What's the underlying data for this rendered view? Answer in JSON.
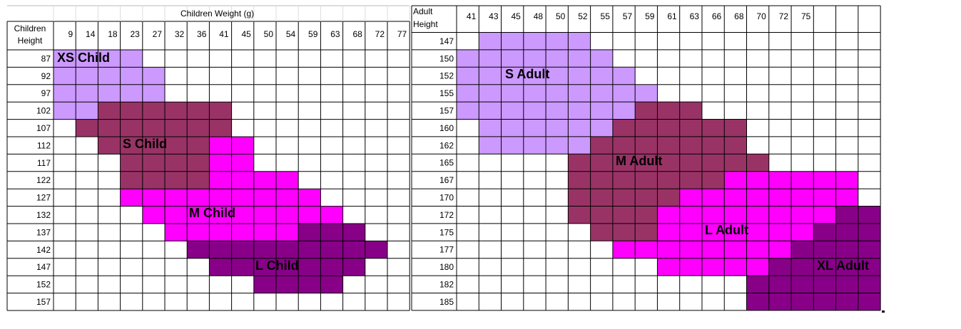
{
  "left_table": {
    "title": "Children Weight (g)",
    "corner": [
      "Children",
      "Height"
    ],
    "columns": [
      9,
      14,
      18,
      23,
      27,
      32,
      36,
      41,
      45,
      50,
      54,
      59,
      63,
      68,
      72,
      77
    ],
    "rows": [
      {
        "label": 87,
        "cells": [
          "#c9f",
          "#c9f",
          "#c9f",
          "#c9f",
          null,
          null,
          null,
          null,
          null,
          null,
          null,
          null,
          null,
          null,
          null,
          null
        ]
      },
      {
        "label": 92,
        "cells": [
          "#c9f",
          "#c9f",
          "#c9f",
          "#c9f",
          "#c9f",
          null,
          null,
          null,
          null,
          null,
          null,
          null,
          null,
          null,
          null,
          null
        ]
      },
      {
        "label": 97,
        "cells": [
          "#c9f",
          "#c9f",
          "#c9f",
          "#c9f",
          "#c9f",
          null,
          null,
          null,
          null,
          null,
          null,
          null,
          null,
          null,
          null,
          null
        ]
      },
      {
        "label": 102,
        "cells": [
          "#c9f",
          "#c9f",
          "#936",
          "#936",
          "#936",
          "#936",
          "#936",
          "#936",
          null,
          null,
          null,
          null,
          null,
          null,
          null,
          null
        ]
      },
      {
        "label": 107,
        "cells": [
          null,
          "#936",
          "#936",
          "#936",
          "#936",
          "#936",
          "#936",
          "#936",
          null,
          null,
          null,
          null,
          null,
          null,
          null,
          null
        ]
      },
      {
        "label": 112,
        "cells": [
          null,
          null,
          "#936",
          "#936",
          "#936",
          "#936",
          "#936",
          "#f0f",
          "#f0f",
          null,
          null,
          null,
          null,
          null,
          null,
          null
        ]
      },
      {
        "label": 117,
        "cells": [
          null,
          null,
          null,
          "#936",
          "#936",
          "#936",
          "#936",
          "#f0f",
          "#f0f",
          null,
          null,
          null,
          null,
          null,
          null,
          null
        ]
      },
      {
        "label": 122,
        "cells": [
          null,
          null,
          null,
          "#936",
          "#936",
          "#936",
          "#936",
          "#f0f",
          "#f0f",
          "#f0f",
          "#f0f",
          null,
          null,
          null,
          null,
          null
        ]
      },
      {
        "label": 127,
        "cells": [
          null,
          null,
          null,
          "#f0f",
          "#f0f",
          "#f0f",
          "#f0f",
          "#f0f",
          "#f0f",
          "#f0f",
          "#f0f",
          "#f0f",
          null,
          null,
          null,
          null
        ]
      },
      {
        "label": 132,
        "cells": [
          null,
          null,
          null,
          null,
          "#f0f",
          "#f0f",
          "#f0f",
          "#f0f",
          "#f0f",
          "#f0f",
          "#f0f",
          "#f0f",
          "#f0f",
          null,
          null,
          null
        ]
      },
      {
        "label": 137,
        "cells": [
          null,
          null,
          null,
          null,
          null,
          "#f0f",
          "#f0f",
          "#f0f",
          "#f0f",
          "#f0f",
          "#f0f",
          "#808",
          "#808",
          "#808",
          null,
          null
        ]
      },
      {
        "label": 142,
        "cells": [
          null,
          null,
          null,
          null,
          null,
          null,
          "#808",
          "#808",
          "#808",
          "#808",
          "#808",
          "#808",
          "#808",
          "#808",
          "#808",
          null
        ]
      },
      {
        "label": 147,
        "cells": [
          null,
          null,
          null,
          null,
          null,
          null,
          null,
          "#808",
          "#808",
          "#808",
          "#808",
          "#808",
          "#808",
          "#808",
          null,
          null
        ]
      },
      {
        "label": 152,
        "cells": [
          null,
          null,
          null,
          null,
          null,
          null,
          null,
          null,
          null,
          "#808",
          "#808",
          "#808",
          "#808",
          null,
          null,
          null
        ]
      },
      {
        "label": 157,
        "cells": [
          null,
          null,
          null,
          null,
          null,
          null,
          null,
          null,
          null,
          null,
          null,
          null,
          null,
          null,
          null,
          null
        ]
      }
    ],
    "size_labels": [
      "XS Child",
      "S Child",
      "M Child",
      "L Child"
    ]
  },
  "right_table": {
    "corner": [
      "Adult",
      "Height"
    ],
    "columns": [
      41,
      43,
      45,
      48,
      50,
      52,
      55,
      57,
      59,
      61,
      63,
      66,
      68,
      70,
      72,
      75,
      null,
      null,
      null
    ],
    "rows": [
      {
        "label": 147,
        "cells": [
          null,
          "#c9f",
          "#c9f",
          "#c9f",
          "#c9f",
          "#c9f",
          null,
          null,
          null,
          null,
          null,
          null,
          null,
          null,
          null,
          null,
          null,
          null,
          null
        ]
      },
      {
        "label": 150,
        "cells": [
          "#c9f",
          "#c9f",
          "#c9f",
          "#c9f",
          "#c9f",
          "#c9f",
          "#c9f",
          null,
          null,
          null,
          null,
          null,
          null,
          null,
          null,
          null,
          null,
          null,
          null
        ]
      },
      {
        "label": 152,
        "cells": [
          "#c9f",
          "#c9f",
          "#c9f",
          "#c9f",
          "#c9f",
          "#c9f",
          "#c9f",
          "#c9f",
          null,
          null,
          null,
          null,
          null,
          null,
          null,
          null,
          null,
          null,
          null
        ]
      },
      {
        "label": 155,
        "cells": [
          "#c9f",
          "#c9f",
          "#c9f",
          "#c9f",
          "#c9f",
          "#c9f",
          "#c9f",
          "#c9f",
          "#c9f",
          null,
          null,
          null,
          null,
          null,
          null,
          null,
          null,
          null,
          null
        ]
      },
      {
        "label": 157,
        "cells": [
          "#c9f",
          "#c9f",
          "#c9f",
          "#c9f",
          "#c9f",
          "#c9f",
          "#c9f",
          "#c9f",
          "#936",
          "#936",
          "#936",
          null,
          null,
          null,
          null,
          null,
          null,
          null,
          null
        ]
      },
      {
        "label": 160,
        "cells": [
          null,
          "#c9f",
          "#c9f",
          "#c9f",
          "#c9f",
          "#c9f",
          "#c9f",
          "#936",
          "#936",
          "#936",
          "#936",
          "#936",
          "#936",
          null,
          null,
          null,
          null,
          null,
          null
        ]
      },
      {
        "label": 162,
        "cells": [
          null,
          "#c9f",
          "#c9f",
          "#c9f",
          "#c9f",
          "#c9f",
          "#936",
          "#936",
          "#936",
          "#936",
          "#936",
          "#936",
          "#936",
          null,
          null,
          null,
          null,
          null,
          null
        ]
      },
      {
        "label": 165,
        "cells": [
          null,
          null,
          null,
          null,
          null,
          "#936",
          "#936",
          "#936",
          "#936",
          "#936",
          "#936",
          "#936",
          "#936",
          "#936",
          null,
          null,
          null,
          null,
          null
        ]
      },
      {
        "label": 167,
        "cells": [
          null,
          null,
          null,
          null,
          null,
          "#936",
          "#936",
          "#936",
          "#936",
          "#936",
          "#936",
          "#936",
          "#f0f",
          "#f0f",
          "#f0f",
          "#f0f",
          "#f0f",
          "#f0f",
          null
        ]
      },
      {
        "label": 170,
        "cells": [
          null,
          null,
          null,
          null,
          null,
          "#936",
          "#936",
          "#936",
          "#936",
          "#936",
          "#f0f",
          "#f0f",
          "#f0f",
          "#f0f",
          "#f0f",
          "#f0f",
          "#f0f",
          "#f0f",
          null
        ]
      },
      {
        "label": 172,
        "cells": [
          null,
          null,
          null,
          null,
          null,
          "#936",
          "#936",
          "#936",
          "#936",
          "#f0f",
          "#f0f",
          "#f0f",
          "#f0f",
          "#f0f",
          "#f0f",
          "#f0f",
          "#f0f",
          "#808",
          "#808"
        ]
      },
      {
        "label": 175,
        "cells": [
          null,
          null,
          null,
          null,
          null,
          null,
          "#936",
          "#936",
          "#936",
          "#f0f",
          "#f0f",
          "#f0f",
          "#f0f",
          "#f0f",
          "#f0f",
          "#f0f",
          "#808",
          "#808",
          "#808"
        ]
      },
      {
        "label": 177,
        "cells": [
          null,
          null,
          null,
          null,
          null,
          null,
          null,
          "#f0f",
          "#f0f",
          "#f0f",
          "#f0f",
          "#f0f",
          "#f0f",
          "#f0f",
          "#f0f",
          "#808",
          "#808",
          "#808",
          "#808"
        ]
      },
      {
        "label": 180,
        "cells": [
          null,
          null,
          null,
          null,
          null,
          null,
          null,
          null,
          null,
          "#f0f",
          "#f0f",
          "#f0f",
          "#f0f",
          "#f0f",
          "#808",
          "#808",
          "#808",
          "#808",
          "#808"
        ]
      },
      {
        "label": 182,
        "cells": [
          null,
          null,
          null,
          null,
          null,
          null,
          null,
          null,
          null,
          null,
          null,
          null,
          null,
          "#808",
          "#808",
          "#808",
          "#808",
          "#808",
          "#808"
        ]
      },
      {
        "label": 185,
        "cells": [
          null,
          null,
          null,
          null,
          null,
          null,
          null,
          null,
          null,
          null,
          null,
          null,
          null,
          "#808",
          "#808",
          "#808",
          "#808",
          "#808",
          "#808"
        ]
      }
    ],
    "size_labels": [
      "S Adult",
      "M Adult",
      "L Adult",
      "XL Adult"
    ]
  }
}
